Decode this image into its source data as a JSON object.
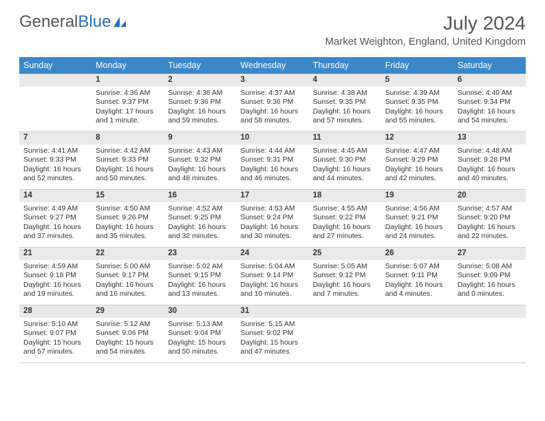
{
  "logo": {
    "text1": "General",
    "text2": "Blue"
  },
  "title": "July 2024",
  "location": "Market Weighton, England, United Kingdom",
  "colors": {
    "header_bg": "#3b87c8",
    "header_fg": "#ffffff",
    "daynum_bg": "#e9e9e9",
    "border": "#cccccc",
    "text": "#333333",
    "logo_gray": "#555555",
    "logo_blue": "#2a6db8"
  },
  "weekdays": [
    "Sunday",
    "Monday",
    "Tuesday",
    "Wednesday",
    "Thursday",
    "Friday",
    "Saturday"
  ],
  "weeks": [
    {
      "nums": [
        "",
        "1",
        "2",
        "3",
        "4",
        "5",
        "6"
      ],
      "cells": [
        "",
        "Sunrise: 4:36 AM\nSunset: 9:37 PM\nDaylight: 17 hours and 1 minute.",
        "Sunrise: 4:36 AM\nSunset: 9:36 PM\nDaylight: 16 hours and 59 minutes.",
        "Sunrise: 4:37 AM\nSunset: 9:36 PM\nDaylight: 16 hours and 58 minutes.",
        "Sunrise: 4:38 AM\nSunset: 9:35 PM\nDaylight: 16 hours and 57 minutes.",
        "Sunrise: 4:39 AM\nSunset: 9:35 PM\nDaylight: 16 hours and 55 minutes.",
        "Sunrise: 4:40 AM\nSunset: 9:34 PM\nDaylight: 16 hours and 54 minutes."
      ]
    },
    {
      "nums": [
        "7",
        "8",
        "9",
        "10",
        "11",
        "12",
        "13"
      ],
      "cells": [
        "Sunrise: 4:41 AM\nSunset: 9:33 PM\nDaylight: 16 hours and 52 minutes.",
        "Sunrise: 4:42 AM\nSunset: 9:33 PM\nDaylight: 16 hours and 50 minutes.",
        "Sunrise: 4:43 AM\nSunset: 9:32 PM\nDaylight: 16 hours and 48 minutes.",
        "Sunrise: 4:44 AM\nSunset: 9:31 PM\nDaylight: 16 hours and 46 minutes.",
        "Sunrise: 4:45 AM\nSunset: 9:30 PM\nDaylight: 16 hours and 44 minutes.",
        "Sunrise: 4:47 AM\nSunset: 9:29 PM\nDaylight: 16 hours and 42 minutes.",
        "Sunrise: 4:48 AM\nSunset: 9:28 PM\nDaylight: 16 hours and 40 minutes."
      ]
    },
    {
      "nums": [
        "14",
        "15",
        "16",
        "17",
        "18",
        "19",
        "20"
      ],
      "cells": [
        "Sunrise: 4:49 AM\nSunset: 9:27 PM\nDaylight: 16 hours and 37 minutes.",
        "Sunrise: 4:50 AM\nSunset: 9:26 PM\nDaylight: 16 hours and 35 minutes.",
        "Sunrise: 4:52 AM\nSunset: 9:25 PM\nDaylight: 16 hours and 32 minutes.",
        "Sunrise: 4:53 AM\nSunset: 9:24 PM\nDaylight: 16 hours and 30 minutes.",
        "Sunrise: 4:55 AM\nSunset: 9:22 PM\nDaylight: 16 hours and 27 minutes.",
        "Sunrise: 4:56 AM\nSunset: 9:21 PM\nDaylight: 16 hours and 24 minutes.",
        "Sunrise: 4:57 AM\nSunset: 9:20 PM\nDaylight: 16 hours and 22 minutes."
      ]
    },
    {
      "nums": [
        "21",
        "22",
        "23",
        "24",
        "25",
        "26",
        "27"
      ],
      "cells": [
        "Sunrise: 4:59 AM\nSunset: 9:18 PM\nDaylight: 16 hours and 19 minutes.",
        "Sunrise: 5:00 AM\nSunset: 9:17 PM\nDaylight: 16 hours and 16 minutes.",
        "Sunrise: 5:02 AM\nSunset: 9:15 PM\nDaylight: 16 hours and 13 minutes.",
        "Sunrise: 5:04 AM\nSunset: 9:14 PM\nDaylight: 16 hours and 10 minutes.",
        "Sunrise: 5:05 AM\nSunset: 9:12 PM\nDaylight: 16 hours and 7 minutes.",
        "Sunrise: 5:07 AM\nSunset: 9:11 PM\nDaylight: 16 hours and 4 minutes.",
        "Sunrise: 5:08 AM\nSunset: 9:09 PM\nDaylight: 16 hours and 0 minutes."
      ]
    },
    {
      "nums": [
        "28",
        "29",
        "30",
        "31",
        "",
        "",
        ""
      ],
      "cells": [
        "Sunrise: 5:10 AM\nSunset: 9:07 PM\nDaylight: 15 hours and 57 minutes.",
        "Sunrise: 5:12 AM\nSunset: 9:06 PM\nDaylight: 15 hours and 54 minutes.",
        "Sunrise: 5:13 AM\nSunset: 9:04 PM\nDaylight: 15 hours and 50 minutes.",
        "Sunrise: 5:15 AM\nSunset: 9:02 PM\nDaylight: 15 hours and 47 minutes.",
        "",
        "",
        ""
      ]
    }
  ]
}
